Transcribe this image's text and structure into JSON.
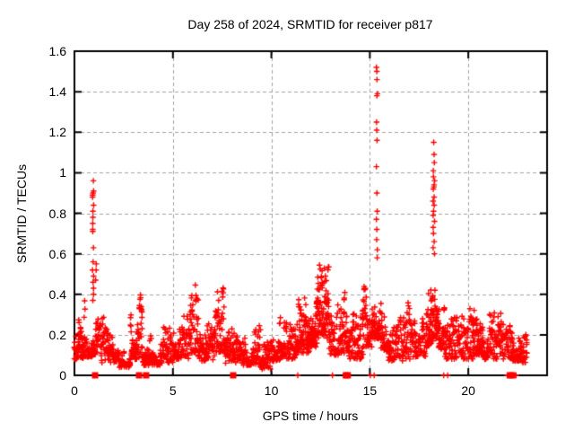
{
  "chart_data": {
    "type": "scatter",
    "title": "Day 258 of 2024, SRMTID for receiver p817",
    "xlabel": "GPS time / hours",
    "ylabel": "SRMTID / TECUs",
    "xlim": [
      0,
      24
    ],
    "ylim": [
      0,
      1.6
    ],
    "xticks": [
      "0",
      "5",
      "10",
      "15",
      "20"
    ],
    "yticks": [
      "0",
      "0.2",
      "0.4",
      "0.6",
      "0.8",
      "1",
      "1.2",
      "1.4",
      "1.6"
    ],
    "grid": "dashed, both axes",
    "legend": "none",
    "marker": {
      "shape": "plus",
      "color": "#ff0000"
    },
    "colors": {
      "background": "#ffffff",
      "border": "#000000",
      "grid": "#a0a0a0",
      "points": "#ff0000"
    },
    "bands": [
      {
        "x0": 0.0,
        "x1": 0.55,
        "ymin": 0.08,
        "ymax": 0.44,
        "den": 4
      },
      {
        "x0": 0.55,
        "x1": 0.9,
        "ymin": 0.09,
        "ymax": 0.32,
        "den": 3
      },
      {
        "x0": 0.9,
        "x1": 1.35,
        "ymin": 0.1,
        "ymax": 0.36,
        "den": 3
      },
      {
        "x0": 1.35,
        "x1": 2.3,
        "ymin": 0.06,
        "ymax": 0.3,
        "den": 3
      },
      {
        "x0": 2.3,
        "x1": 2.85,
        "ymin": 0.04,
        "ymax": 0.18,
        "den": 3
      },
      {
        "x0": 2.85,
        "x1": 3.45,
        "ymin": 0.08,
        "ymax": 0.42,
        "den": 4
      },
      {
        "x0": 3.45,
        "x1": 4.35,
        "ymin": 0.05,
        "ymax": 0.22,
        "den": 3
      },
      {
        "x0": 4.35,
        "x1": 5.05,
        "ymin": 0.06,
        "ymax": 0.24,
        "den": 3
      },
      {
        "x0": 5.05,
        "x1": 5.85,
        "ymin": 0.08,
        "ymax": 0.33,
        "den": 3
      },
      {
        "x0": 5.85,
        "x1": 6.3,
        "ymin": 0.11,
        "ymax": 0.46,
        "den": 4
      },
      {
        "x0": 6.3,
        "x1": 7.15,
        "ymin": 0.07,
        "ymax": 0.26,
        "den": 3
      },
      {
        "x0": 7.15,
        "x1": 7.6,
        "ymin": 0.11,
        "ymax": 0.44,
        "den": 4
      },
      {
        "x0": 7.6,
        "x1": 8.6,
        "ymin": 0.06,
        "ymax": 0.24,
        "den": 3
      },
      {
        "x0": 8.6,
        "x1": 9.45,
        "ymin": 0.05,
        "ymax": 0.28,
        "den": 3
      },
      {
        "x0": 9.45,
        "x1": 9.95,
        "ymin": 0.03,
        "ymax": 0.17,
        "den": 3
      },
      {
        "x0": 9.95,
        "x1": 10.45,
        "ymin": 0.07,
        "ymax": 0.33,
        "den": 3
      },
      {
        "x0": 10.45,
        "x1": 11.3,
        "ymin": 0.08,
        "ymax": 0.28,
        "den": 3
      },
      {
        "x0": 11.3,
        "x1": 11.9,
        "ymin": 0.11,
        "ymax": 0.47,
        "den": 4
      },
      {
        "x0": 11.9,
        "x1": 12.3,
        "ymin": 0.14,
        "ymax": 0.4,
        "den": 4
      },
      {
        "x0": 12.3,
        "x1": 12.95,
        "ymin": 0.18,
        "ymax": 0.57,
        "den": 5
      },
      {
        "x0": 12.95,
        "x1": 13.55,
        "ymin": 0.1,
        "ymax": 0.36,
        "den": 3
      },
      {
        "x0": 13.55,
        "x1": 13.95,
        "ymin": 0.11,
        "ymax": 0.42,
        "den": 4
      },
      {
        "x0": 13.95,
        "x1": 14.65,
        "ymin": 0.08,
        "ymax": 0.31,
        "den": 3
      },
      {
        "x0": 14.65,
        "x1": 15.1,
        "ymin": 0.14,
        "ymax": 0.56,
        "den": 4
      },
      {
        "x0": 15.1,
        "x1": 15.55,
        "ymin": 0.18,
        "ymax": 0.58,
        "den": 4
      },
      {
        "x0": 15.55,
        "x1": 15.95,
        "ymin": 0.12,
        "ymax": 0.54,
        "den": 4
      },
      {
        "x0": 15.95,
        "x1": 16.8,
        "ymin": 0.07,
        "ymax": 0.29,
        "den": 3
      },
      {
        "x0": 16.8,
        "x1": 17.35,
        "ymin": 0.08,
        "ymax": 0.36,
        "den": 3
      },
      {
        "x0": 17.35,
        "x1": 17.9,
        "ymin": 0.09,
        "ymax": 0.31,
        "den": 3
      },
      {
        "x0": 17.9,
        "x1": 18.2,
        "ymin": 0.14,
        "ymax": 0.5,
        "den": 4
      },
      {
        "x0": 18.2,
        "x1": 18.5,
        "ymin": 0.18,
        "ymax": 0.6,
        "den": 4
      },
      {
        "x0": 18.5,
        "x1": 18.8,
        "ymin": 0.13,
        "ymax": 0.52,
        "den": 4
      },
      {
        "x0": 18.8,
        "x1": 19.55,
        "ymin": 0.08,
        "ymax": 0.29,
        "den": 3
      },
      {
        "x0": 19.55,
        "x1": 20.25,
        "ymin": 0.08,
        "ymax": 0.33,
        "den": 3
      },
      {
        "x0": 20.25,
        "x1": 20.75,
        "ymin": 0.1,
        "ymax": 0.42,
        "den": 4
      },
      {
        "x0": 20.75,
        "x1": 21.65,
        "ymin": 0.08,
        "ymax": 0.31,
        "den": 3
      },
      {
        "x0": 21.65,
        "x1": 22.25,
        "ymin": 0.08,
        "ymax": 0.3,
        "den": 3
      },
      {
        "x0": 22.25,
        "x1": 22.65,
        "ymin": 0.07,
        "ymax": 0.28,
        "den": 3
      },
      {
        "x0": 22.65,
        "x1": 23.0,
        "ymin": 0.06,
        "ymax": 0.22,
        "den": 3
      }
    ],
    "spike_columns": [
      {
        "x": 0.95,
        "spread": 0.06,
        "ys": [
          0.37,
          0.4,
          0.43,
          0.46,
          0.49,
          0.52,
          0.56,
          0.63,
          0.71,
          0.72,
          0.75,
          0.78,
          0.81,
          0.84,
          0.88,
          0.89,
          0.9,
          0.91,
          0.96
        ]
      },
      {
        "x": 1.09,
        "spread": 0.05,
        "ys": [
          0.47,
          0.52,
          0.55
        ]
      },
      {
        "x": 15.36,
        "spread": 0.06,
        "ys": [
          0.58,
          0.62,
          0.67,
          0.72,
          0.77,
          0.81,
          0.9,
          1.03,
          1.16,
          1.21,
          1.25,
          1.38,
          1.39,
          1.46,
          1.5,
          1.52
        ]
      },
      {
        "x": 18.25,
        "spread": 0.08,
        "ys": [
          0.6,
          0.63,
          0.66,
          0.7,
          0.73,
          0.76,
          0.79,
          0.81,
          0.84,
          0.86,
          0.88,
          0.92,
          0.93,
          0.94,
          0.96,
          0.98,
          1.01,
          1.05,
          1.09,
          1.15
        ]
      }
    ],
    "zero_markers": {
      "squares_x": [
        1.05,
        3.28,
        3.64,
        8.06,
        13.78,
        13.88,
        22.12,
        22.24
      ],
      "plus_x": [
        11.34,
        13.1,
        15.03,
        15.22,
        18.75,
        18.95,
        21.98,
        22.42
      ]
    }
  }
}
